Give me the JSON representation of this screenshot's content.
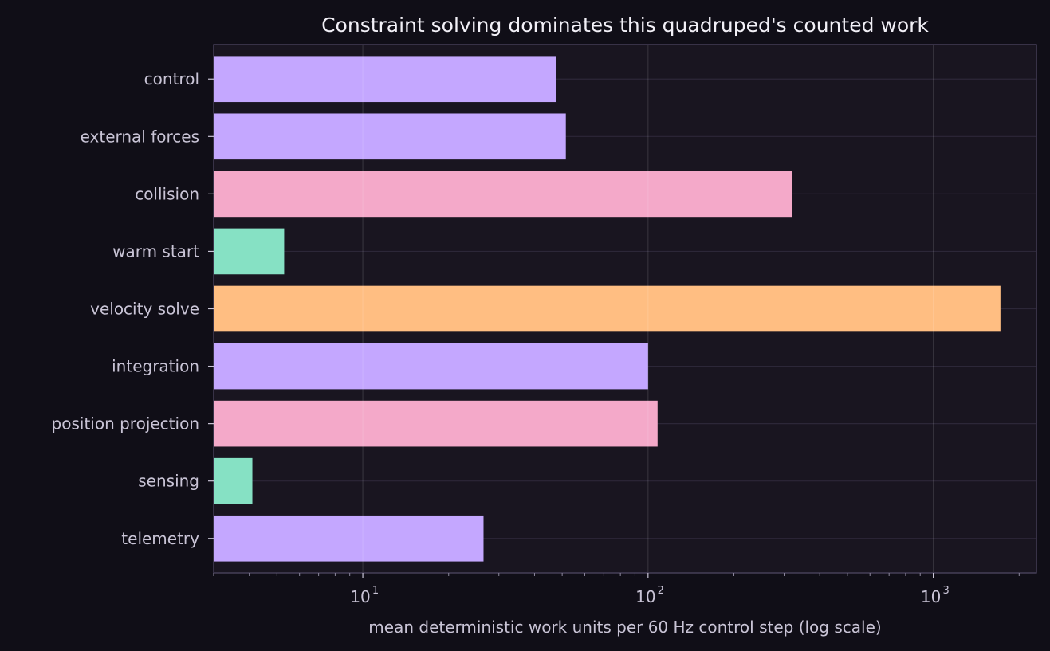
{
  "chart_data": {
    "type": "bar",
    "orientation": "horizontal",
    "title": "Constraint solving dominates this quadruped's counted work",
    "xlabel": "mean deterministic work units per 60 Hz control step (log scale)",
    "ylabel": "",
    "x_scale": "log",
    "xlim": [
      3.0,
      2300
    ],
    "grid": true,
    "x_ticks": [
      {
        "base": "10",
        "exp": "1",
        "value": 10
      },
      {
        "base": "10",
        "exp": "2",
        "value": 100
      },
      {
        "base": "10",
        "exp": "3",
        "value": 1000
      }
    ],
    "categories": [
      "control",
      "external forces",
      "collision",
      "warm start",
      "velocity solve",
      "integration",
      "position projection",
      "sensing",
      "telemetry"
    ],
    "values": [
      47.5,
      51.5,
      320,
      5.3,
      1720,
      100,
      108,
      4.1,
      26.5
    ],
    "colors": [
      "#c4a7ff",
      "#c4a7ff",
      "#f4a9c9",
      "#86e1c4",
      "#ffbe82",
      "#c4a7ff",
      "#f4a9c9",
      "#86e1c4",
      "#c4a7ff"
    ]
  }
}
